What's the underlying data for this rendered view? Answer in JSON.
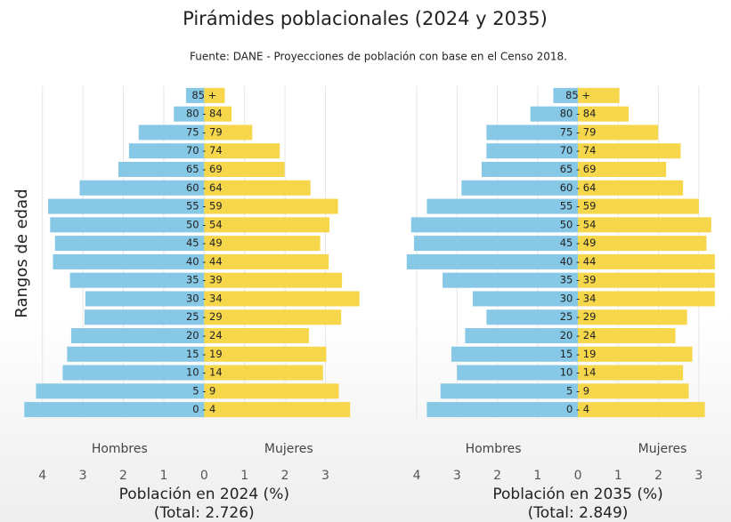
{
  "title": "Pirámides poblacionales (2024 y 2035)",
  "subtitle": "Fuente: DANE - Proyecciones de población con base en el Censo 2018.",
  "y_label": "Rangos de edad",
  "chart_data": [
    {
      "type": "pyramid",
      "categories": [
        "0 - 4",
        "5 - 9",
        "10 - 14",
        "15 - 19",
        "20 - 24",
        "25 - 29",
        "30 - 34",
        "35 - 39",
        "40 - 44",
        "45 - 49",
        "50 - 54",
        "55 - 59",
        "60 - 64",
        "65 - 69",
        "70 - 74",
        "75 - 79",
        "80 - 84",
        "85 +"
      ],
      "series": [
        {
          "name": "Hombres",
          "color": "#86c8e6",
          "values": [
            4.45,
            4.16,
            3.5,
            3.39,
            3.29,
            2.96,
            2.94,
            3.32,
            3.74,
            3.69,
            3.81,
            3.86,
            3.08,
            2.12,
            1.86,
            1.62,
            0.75,
            0.45
          ]
        },
        {
          "name": "Mujeres",
          "color": "#f6d64a",
          "values": [
            3.61,
            3.33,
            2.94,
            3.02,
            2.59,
            3.39,
            3.84,
            3.41,
            3.08,
            2.87,
            3.1,
            3.31,
            2.63,
            1.99,
            1.87,
            1.19,
            0.68,
            0.51
          ]
        }
      ],
      "xlabel": "Población en 2024 (%)",
      "note": "(Total: 2.726)",
      "xlim": [
        -4.5,
        4.2
      ],
      "xticks": [
        {
          "value": -4,
          "label": "4"
        },
        {
          "value": -3,
          "label": "3"
        },
        {
          "value": -2,
          "label": "2"
        },
        {
          "value": -1,
          "label": "1"
        },
        0,
        1,
        2,
        3
      ],
      "grid": true
    },
    {
      "type": "pyramid",
      "categories": [
        "0 - 4",
        "5 - 9",
        "10 - 14",
        "15 - 19",
        "20 - 24",
        "25 - 29",
        "30 - 34",
        "35 - 39",
        "40 - 44",
        "45 - 49",
        "50 - 54",
        "55 - 59",
        "60 - 64",
        "65 - 69",
        "70 - 74",
        "75 - 79",
        "80 - 84",
        "85 +"
      ],
      "series": [
        {
          "name": "Hombres",
          "color": "#86c8e6",
          "values": [
            3.75,
            3.41,
            3.0,
            3.14,
            2.8,
            2.27,
            2.61,
            3.36,
            4.25,
            4.07,
            4.14,
            3.75,
            2.89,
            2.39,
            2.27,
            2.27,
            1.18,
            0.61
          ]
        },
        {
          "name": "Mujeres",
          "color": "#f6d64a",
          "values": [
            3.15,
            2.75,
            2.61,
            2.84,
            2.42,
            2.71,
            3.4,
            3.4,
            3.4,
            3.19,
            3.31,
            3.0,
            2.61,
            2.19,
            2.55,
            1.99,
            1.26,
            1.03
          ]
        }
      ],
      "xlabel": "Población en 2035 (%)",
      "note": "(Total: 2.849)",
      "xlim": [
        -4.4,
        3.8
      ],
      "xticks": [
        {
          "value": -4,
          "label": "4"
        },
        {
          "value": -3,
          "label": "3"
        },
        {
          "value": -2,
          "label": "2"
        },
        {
          "value": -1,
          "label": "1"
        },
        0,
        1,
        2,
        3
      ],
      "grid": true
    }
  ]
}
